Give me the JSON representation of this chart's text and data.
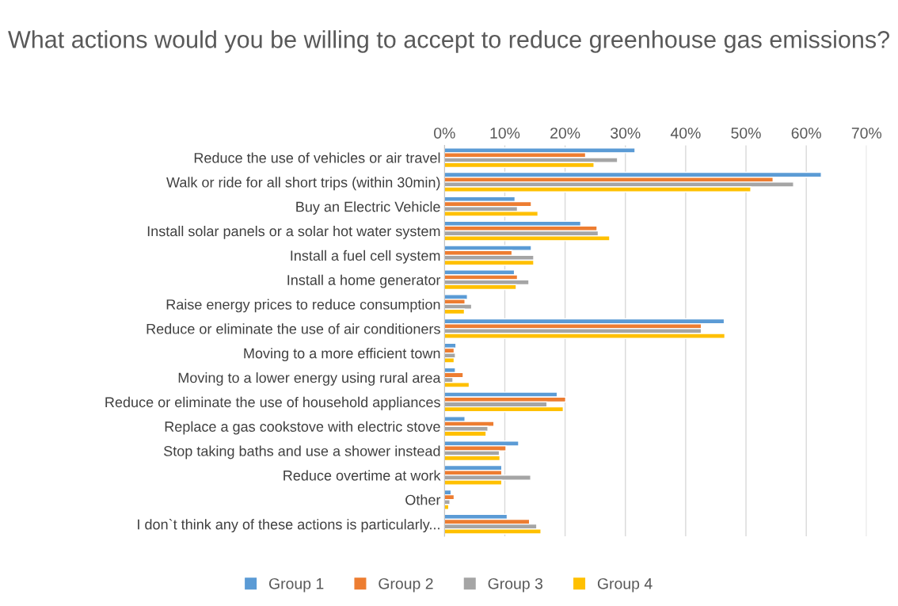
{
  "chart_data": {
    "type": "bar",
    "orientation": "horizontal",
    "title": "What actions would you be willing to accept to reduce greenhouse gas emissions?",
    "categories": [
      "Reduce the use of vehicles or air travel",
      "Walk or ride for all short trips (within 30min)",
      "Buy an Electric Vehicle",
      "Install solar panels or a solar hot water system",
      "Install a fuel cell system",
      "Install a home generator",
      "Raise energy prices to reduce consumption",
      "Reduce or eliminate the use of air conditioners",
      "Moving to a more efficient town",
      "Moving to a lower energy using rural area",
      "Reduce or eliminate the use of household appliances",
      "Replace a gas cookstove with electric stove",
      "Stop taking baths and use a shower instead",
      "Reduce overtime at work",
      "Other",
      "I don`t think any of these actions is particularly..."
    ],
    "series": [
      {
        "name": "Group 1",
        "color": "#5b9bd5",
        "values": [
          31.6,
          62.5,
          11.7,
          22.6,
          14.4,
          11.6,
          3.8,
          46.4,
          1.9,
          1.8,
          18.7,
          3.4,
          12.3,
          9.5,
          1.1,
          10.4
        ]
      },
      {
        "name": "Group 2",
        "color": "#ed7d31",
        "values": [
          23.4,
          54.5,
          14.4,
          25.3,
          11.2,
          12.1,
          3.4,
          42.6,
          1.6,
          3.1,
          20.1,
          8.2,
          10.2,
          9.5,
          1.6,
          14.1
        ]
      },
      {
        "name": "Group 3",
        "color": "#a5a5a5",
        "values": [
          28.7,
          57.9,
          12.1,
          25.5,
          14.8,
          14.0,
          4.5,
          42.6,
          1.8,
          1.4,
          17.0,
          7.2,
          9.1,
          14.3,
          0.9,
          15.3
        ]
      },
      {
        "name": "Group 4",
        "color": "#ffc000",
        "values": [
          24.8,
          50.8,
          15.5,
          27.4,
          14.8,
          11.9,
          3.3,
          46.5,
          1.6,
          4.1,
          19.7,
          6.9,
          9.2,
          9.5,
          0.7,
          16.0
        ]
      }
    ],
    "xlim": [
      0,
      70
    ],
    "xticks": [
      {
        "value": 0,
        "label": "0%"
      },
      {
        "value": 10,
        "label": "10%"
      },
      {
        "value": 20,
        "label": "20%"
      },
      {
        "value": 30,
        "label": "30%"
      },
      {
        "value": 40,
        "label": "40%"
      },
      {
        "value": 50,
        "label": "50%"
      },
      {
        "value": 60,
        "label": "60%"
      },
      {
        "value": 70,
        "label": "70%"
      }
    ],
    "grid": "x",
    "legend": "bottom"
  }
}
